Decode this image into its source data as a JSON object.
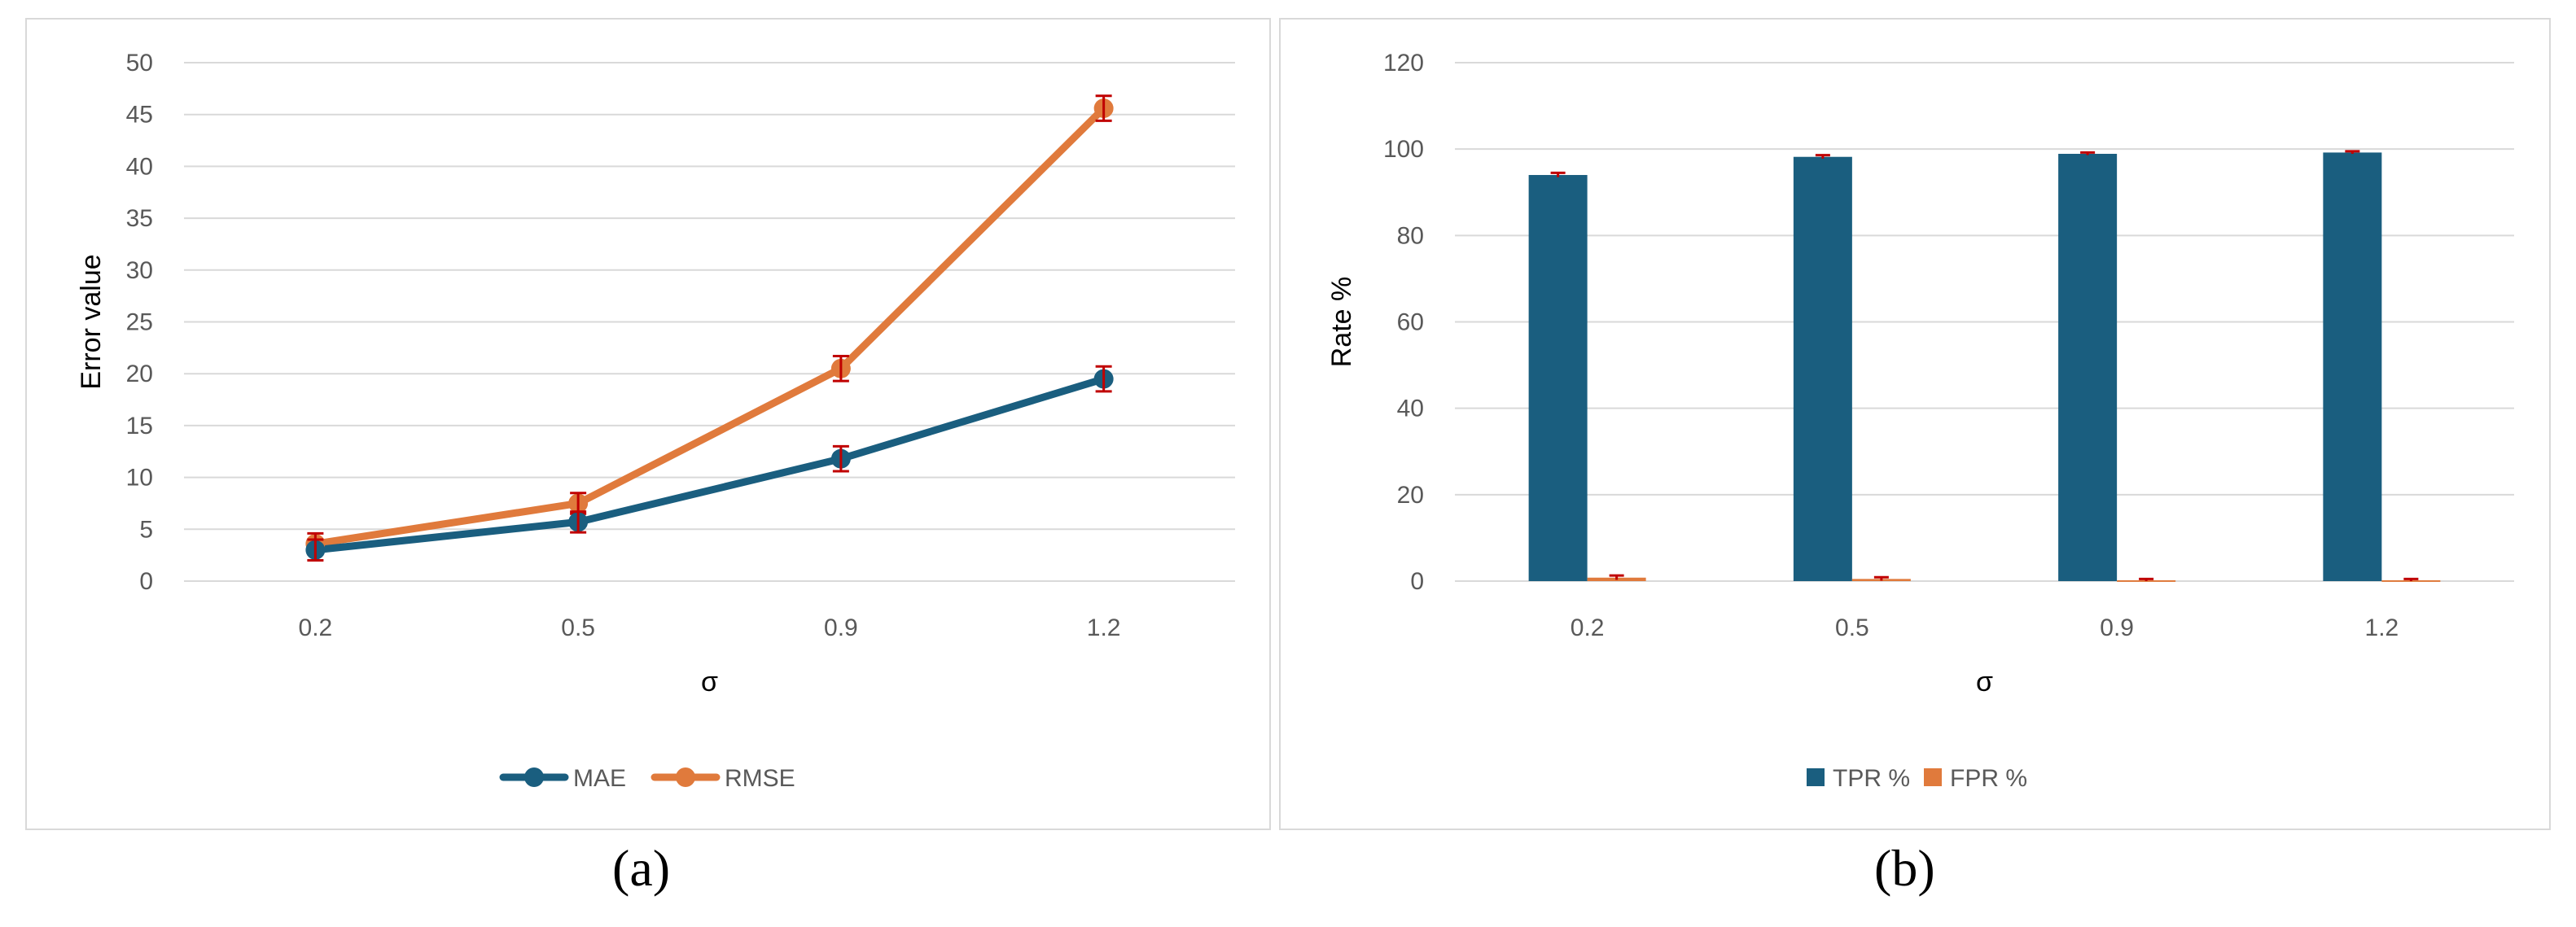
{
  "panel_labels": [
    "(a)",
    "(b)"
  ],
  "colors": {
    "primary": "#1a5e7f",
    "secondary": "#e07a3c",
    "error_bar": "#c00000",
    "grid": "#d9d9d9",
    "tick_text": "#595959"
  },
  "chart_data": [
    {
      "type": "line",
      "categories": [
        "0.2",
        "0.5",
        "0.9",
        "1.2"
      ],
      "series": [
        {
          "name": "MAE",
          "values": [
            3.0,
            5.7,
            11.8,
            19.5
          ],
          "errors": [
            1.0,
            1.0,
            1.2,
            1.2
          ],
          "color": "#1a5e7f"
        },
        {
          "name": "RMSE",
          "values": [
            3.6,
            7.5,
            20.5,
            45.6
          ],
          "errors": [
            1.0,
            1.0,
            1.2,
            1.2
          ],
          "color": "#e07a3c"
        }
      ],
      "xlabel": "σ",
      "ylabel": "Error value",
      "ylim": [
        0,
        50
      ],
      "yticks": [
        0,
        5,
        10,
        15,
        20,
        25,
        30,
        35,
        40,
        45,
        50
      ],
      "grid": true,
      "legend": "bottom"
    },
    {
      "type": "bar",
      "categories": [
        "0.2",
        "0.5",
        "0.9",
        "1.2"
      ],
      "series": [
        {
          "name": "TPR %",
          "values": [
            94.0,
            98.2,
            98.9,
            99.2
          ],
          "errors": [
            0.5,
            0.4,
            0.3,
            0.3
          ],
          "color": "#1a5e7f"
        },
        {
          "name": "FPR %",
          "values": [
            0.8,
            0.5,
            0.2,
            0.2
          ],
          "errors": [
            0.5,
            0.4,
            0.3,
            0.3
          ],
          "color": "#e07a3c"
        }
      ],
      "xlabel": "σ",
      "ylabel": "Rate %",
      "ylim": [
        0,
        120
      ],
      "yticks": [
        0,
        20,
        40,
        60,
        80,
        100,
        120
      ],
      "grid": true,
      "legend": "bottom"
    }
  ]
}
